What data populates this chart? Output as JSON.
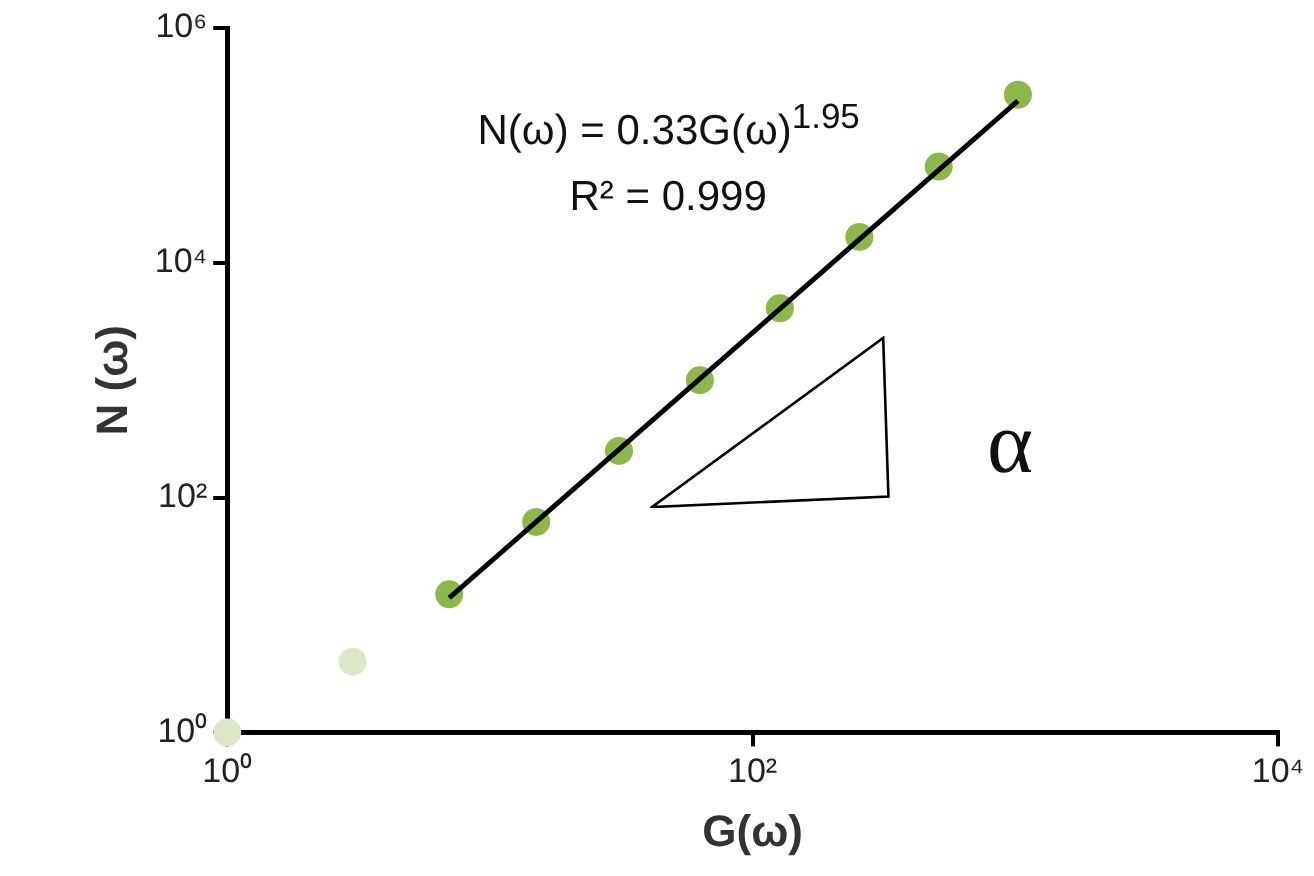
{
  "chart_data": {
    "type": "scatter",
    "xlabel": "G(ω)",
    "ylabel": "N (ω)",
    "series": [
      {
        "x": [
          1,
          3,
          7,
          15,
          31,
          63,
          127,
          255,
          511,
          1023
        ],
        "values": [
          1,
          4,
          15,
          62,
          250,
          1000,
          4100,
          16600,
          66000,
          270000
        ],
        "colors": [
          "#dce6c8",
          "#dce6c8",
          "#8cb84a",
          "#8cb84a",
          "#8cb84a",
          "#8cb84a",
          "#8cb84a",
          "#8cb84a",
          "#8cb84a",
          "#8cb84a"
        ],
        "marker": "circle"
      },
      {
        "type": "line",
        "x": [
          7,
          1023
        ],
        "values": [
          14,
          240000
        ],
        "color": "#000000",
        "marker": "none",
        "line_style": "solid"
      }
    ],
    "log": "xy",
    "xlim": [
      1,
      10000
    ],
    "ylim": [
      1,
      1000000
    ],
    "xticks": [
      {
        "value": 1,
        "label": "10⁰"
      },
      {
        "value": 100,
        "label": "10²"
      },
      {
        "value": 10000,
        "label": "10⁴"
      }
    ],
    "yticks": [
      {
        "value": 1,
        "label": "10⁰"
      },
      {
        "value": 100,
        "label": "10²"
      },
      {
        "value": 10000,
        "label": "10⁴"
      },
      {
        "value": 1000000,
        "label": "10⁶"
      }
    ],
    "grid": false,
    "legend": false,
    "annotations": [
      "N(ω) = 0.33G(ω)$^{1.95}$",
      "R² = 0.999",
      "α"
    ]
  }
}
